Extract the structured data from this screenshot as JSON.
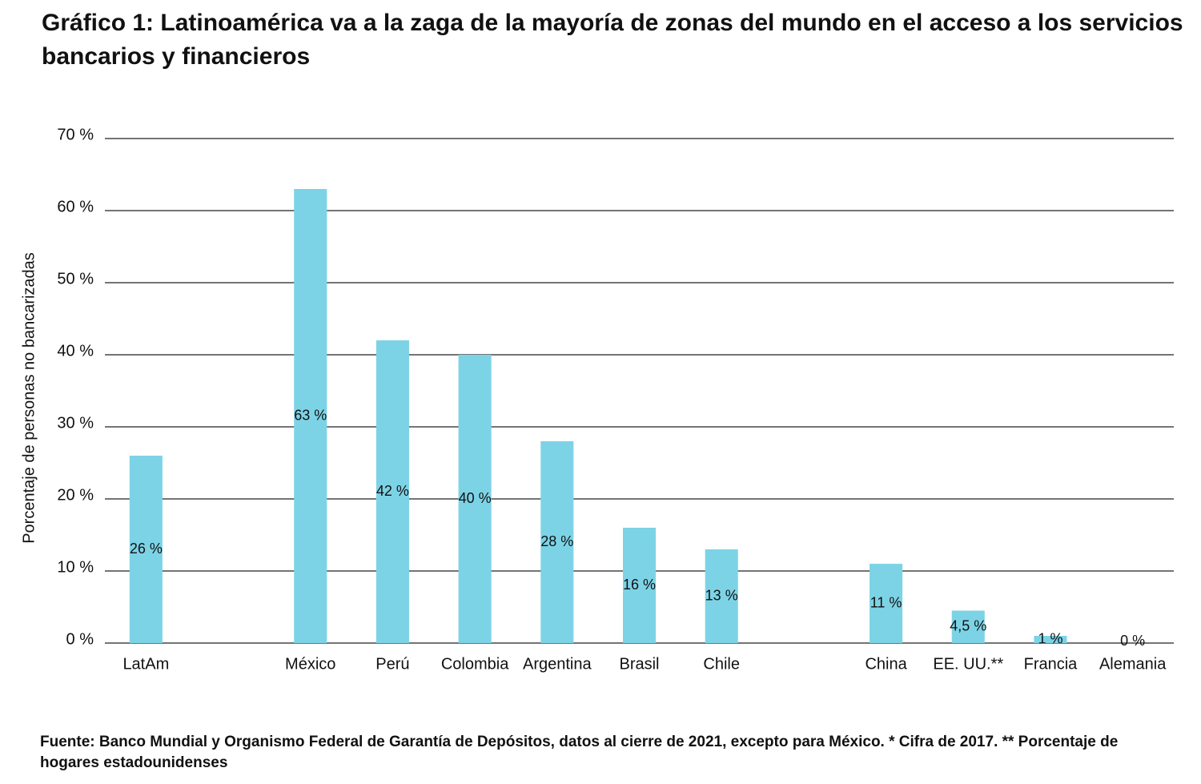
{
  "chart_data": {
    "type": "bar",
    "title": "Gráfico 1: Latinoamérica va a la zaga de la mayoría de zonas del mundo en el acceso a los servicios bancarios y financieros",
    "y_label": "Porcentaje de personas no bancarizadas",
    "categories": [
      "LatAm",
      null,
      "México",
      "Perú",
      "Colombia",
      "Argentina",
      "Brasil",
      "Chile",
      null,
      "China",
      "EE. UU.**",
      "Francia",
      "Alemania"
    ],
    "values": [
      26,
      null,
      63,
      42,
      40,
      28,
      16,
      13,
      null,
      11,
      4.5,
      1,
      0
    ],
    "value_labels": [
      "26 %",
      null,
      "63 %",
      "42 %",
      "40 %",
      "28 %",
      "16 %",
      "13 %",
      null,
      "11 %",
      "4,5 %",
      "1 %",
      "0 %"
    ],
    "color": "#7dd3e6",
    "ylim": [
      0,
      70
    ],
    "yticks": [
      {
        "value": 0,
        "label": "0 %"
      },
      {
        "value": 10,
        "label": "10 %"
      },
      {
        "value": 20,
        "label": "20 %"
      },
      {
        "value": 30,
        "label": "30 %"
      },
      {
        "value": 40,
        "label": "40 %"
      },
      {
        "value": 50,
        "label": "50 %"
      },
      {
        "value": 60,
        "label": "60 %"
      },
      {
        "value": 70,
        "label": "70 %"
      }
    ],
    "grid": true,
    "source": "Fuente: Banco Mundial y Organismo Federal de Garantía de Depósitos, datos al cierre de 2021, excepto para México. * Cifra de 2017. ** Porcentaje de hogares estadounidenses"
  }
}
